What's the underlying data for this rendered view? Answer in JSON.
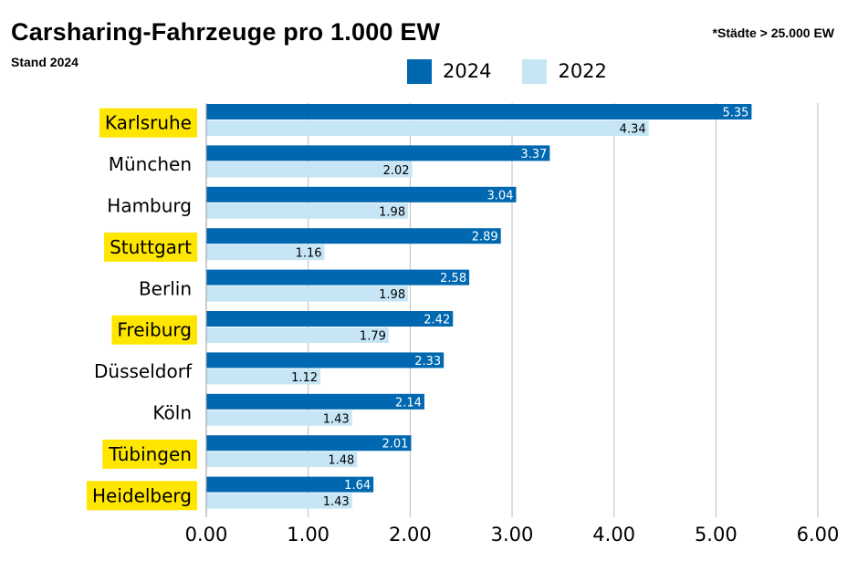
{
  "title": "Carsharing-Fahrzeuge pro 1.000 EW",
  "subtitle": "Stand 2024",
  "note": "*Städte > 25.000 EW",
  "colors": {
    "series_2024": "#0068b0",
    "series_2022": "#c6e6f6",
    "highlight": "#ffe600",
    "grid": "#bbbbbb"
  },
  "chart_data": {
    "type": "bar",
    "orientation": "horizontal",
    "categories": [
      "Karlsruhe",
      "München",
      "Hamburg",
      "Stuttgart",
      "Berlin",
      "Freiburg",
      "Düsseldorf",
      "Köln",
      "Tübingen",
      "Heidelberg"
    ],
    "highlighted_categories": [
      "Karlsruhe",
      "Stuttgart",
      "Freiburg",
      "Tübingen",
      "Heidelberg"
    ],
    "series": [
      {
        "name": "2024",
        "values": [
          5.35,
          3.37,
          3.04,
          2.89,
          2.58,
          2.42,
          2.33,
          2.14,
          2.01,
          1.64
        ]
      },
      {
        "name": "2022",
        "values": [
          4.34,
          2.02,
          1.98,
          1.16,
          1.98,
          1.79,
          1.12,
          1.43,
          1.48,
          1.43
        ]
      }
    ],
    "xlim": [
      0,
      6
    ],
    "xticks": [
      "0.00",
      "1.00",
      "2.00",
      "3.00",
      "4.00",
      "5.00",
      "6.00"
    ],
    "grid": true,
    "legend_position": "top"
  }
}
